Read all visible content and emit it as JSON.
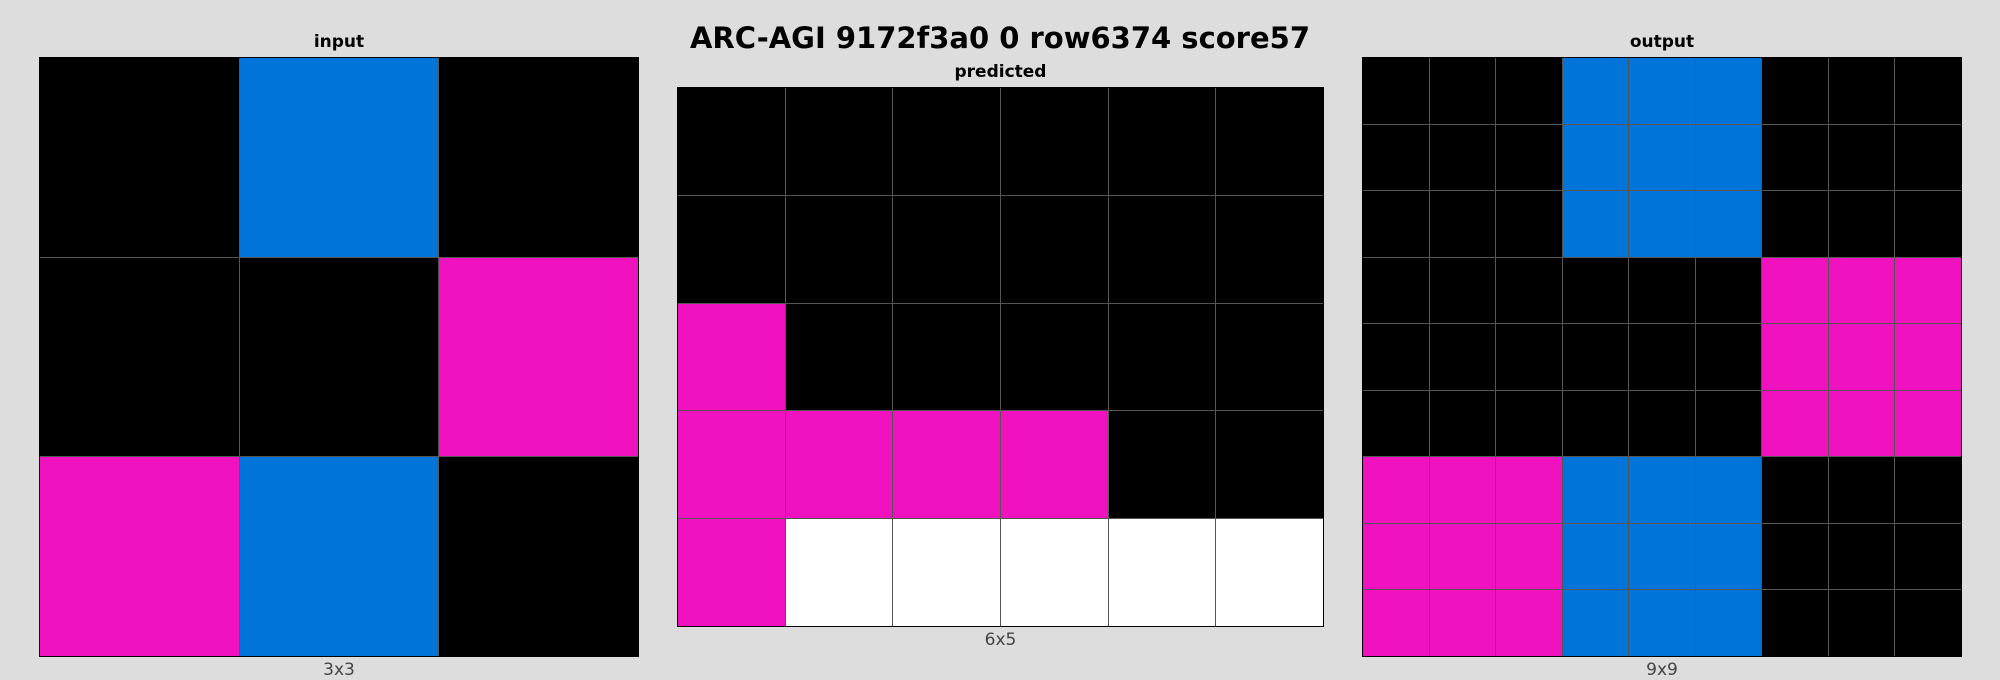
{
  "title": "ARC-AGI 9172f3a0 0 row6374 score57",
  "palette": {
    "0": "#000000",
    "1": "#0074d9",
    "6": "#f012be",
    "w": "#ffffff"
  },
  "panels": {
    "input": {
      "label": "input",
      "dims": "3x3",
      "rows": 3,
      "cols": 3,
      "cells": [
        [
          "0",
          "1",
          "0"
        ],
        [
          "0",
          "0",
          "6"
        ],
        [
          "6",
          "1",
          "0"
        ]
      ]
    },
    "predicted": {
      "label": "predicted",
      "dims": "6x5",
      "rows": 5,
      "cols": 6,
      "cells": [
        [
          "0",
          "0",
          "0",
          "0",
          "0",
          "0"
        ],
        [
          "0",
          "0",
          "0",
          "0",
          "0",
          "0"
        ],
        [
          "6",
          "0",
          "0",
          "0",
          "0",
          "0"
        ],
        [
          "6",
          "6",
          "6",
          "6",
          "0",
          "0"
        ],
        [
          "6",
          "w",
          "w",
          "w",
          "w",
          "w"
        ]
      ]
    },
    "output": {
      "label": "output",
      "dims": "9x9",
      "rows": 9,
      "cols": 9,
      "cells": [
        [
          "0",
          "0",
          "0",
          "1",
          "1",
          "1",
          "0",
          "0",
          "0"
        ],
        [
          "0",
          "0",
          "0",
          "1",
          "1",
          "1",
          "0",
          "0",
          "0"
        ],
        [
          "0",
          "0",
          "0",
          "1",
          "1",
          "1",
          "0",
          "0",
          "0"
        ],
        [
          "0",
          "0",
          "0",
          "0",
          "0",
          "0",
          "6",
          "6",
          "6"
        ],
        [
          "0",
          "0",
          "0",
          "0",
          "0",
          "0",
          "6",
          "6",
          "6"
        ],
        [
          "0",
          "0",
          "0",
          "0",
          "0",
          "0",
          "6",
          "6",
          "6"
        ],
        [
          "6",
          "6",
          "6",
          "1",
          "1",
          "1",
          "0",
          "0",
          "0"
        ],
        [
          "6",
          "6",
          "6",
          "1",
          "1",
          "1",
          "0",
          "0",
          "0"
        ],
        [
          "6",
          "6",
          "6",
          "1",
          "1",
          "1",
          "0",
          "0",
          "0"
        ]
      ]
    }
  }
}
